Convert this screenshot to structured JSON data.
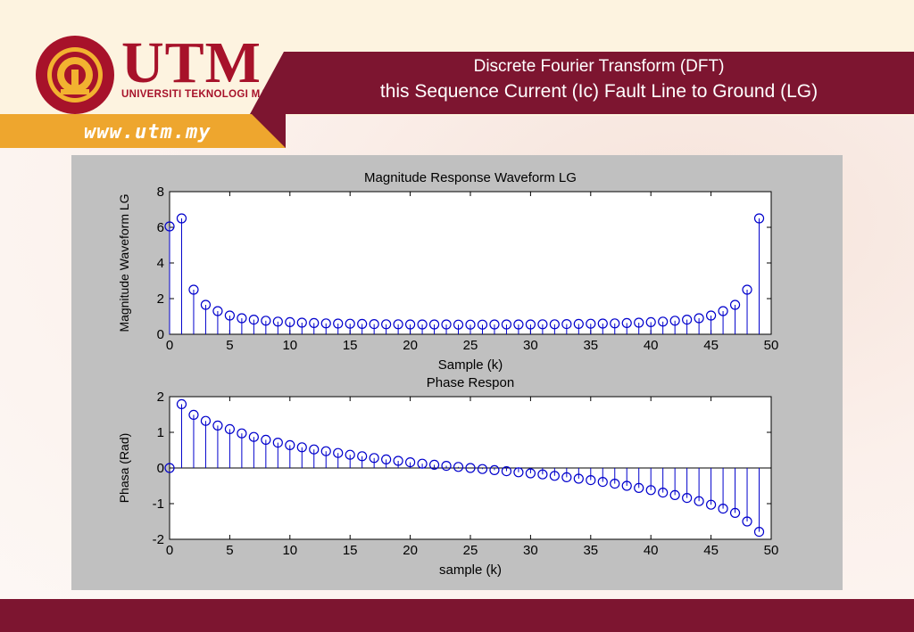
{
  "header": {
    "title_line1": "Discrete Fourier Transform (DFT)",
    "title_line2": "this Sequence Current  (Ic) Fault Line to Ground (LG)",
    "logo_main": "UTM",
    "logo_sub": "UNIVERSITI TEKNOLOGI MALAYSIA",
    "url": "www.utm.my"
  },
  "colors": {
    "maroon": "#7d1530",
    "gold": "#eea62e",
    "stem": "#0000cc"
  },
  "chart_data": [
    {
      "type": "stem",
      "title": "Magnitude Response Waveform LG",
      "xlabel": "Sample (k)",
      "ylabel": "Magnitude Waveform LG",
      "xlim": [
        0,
        50
      ],
      "ylim": [
        0,
        8
      ],
      "xticks": [
        0,
        5,
        10,
        15,
        20,
        25,
        30,
        35,
        40,
        45,
        50
      ],
      "yticks": [
        0,
        2,
        4,
        6,
        8
      ],
      "x": [
        0,
        1,
        2,
        3,
        4,
        5,
        6,
        7,
        8,
        9,
        10,
        11,
        12,
        13,
        14,
        15,
        16,
        17,
        18,
        19,
        20,
        21,
        22,
        23,
        24,
        25,
        26,
        27,
        28,
        29,
        30,
        31,
        32,
        33,
        34,
        35,
        36,
        37,
        38,
        39,
        40,
        41,
        42,
        43,
        44,
        45,
        46,
        47,
        48,
        49
      ],
      "values": [
        6.05,
        6.5,
        2.5,
        1.65,
        1.3,
        1.05,
        0.9,
        0.82,
        0.76,
        0.71,
        0.68,
        0.65,
        0.63,
        0.61,
        0.6,
        0.59,
        0.58,
        0.57,
        0.56,
        0.56,
        0.55,
        0.55,
        0.55,
        0.55,
        0.54,
        0.54,
        0.54,
        0.55,
        0.55,
        0.55,
        0.55,
        0.56,
        0.56,
        0.57,
        0.58,
        0.59,
        0.6,
        0.61,
        0.63,
        0.65,
        0.68,
        0.71,
        0.76,
        0.82,
        0.9,
        1.05,
        1.3,
        1.65,
        2.5,
        6.5
      ]
    },
    {
      "type": "stem",
      "title": "Phase Respon",
      "xlabel": "sample (k)",
      "ylabel": "Phasa (Rad)",
      "xlim": [
        0,
        50
      ],
      "ylim": [
        -2,
        2
      ],
      "xticks": [
        0,
        5,
        10,
        15,
        20,
        25,
        30,
        35,
        40,
        45,
        50
      ],
      "yticks": [
        -2,
        -1,
        0,
        1,
        2
      ],
      "x": [
        0,
        1,
        2,
        3,
        4,
        5,
        6,
        7,
        8,
        9,
        10,
        11,
        12,
        13,
        14,
        15,
        16,
        17,
        18,
        19,
        20,
        21,
        22,
        23,
        24,
        25,
        26,
        27,
        28,
        29,
        30,
        31,
        32,
        33,
        34,
        35,
        36,
        37,
        38,
        39,
        40,
        41,
        42,
        43,
        44,
        45,
        46,
        47,
        48,
        49
      ],
      "values": [
        0,
        1.79,
        1.49,
        1.32,
        1.19,
        1.09,
        0.97,
        0.87,
        0.79,
        0.71,
        0.64,
        0.58,
        0.52,
        0.47,
        0.42,
        0.37,
        0.33,
        0.28,
        0.24,
        0.2,
        0.16,
        0.12,
        0.09,
        0.06,
        0.03,
        0.0,
        -0.03,
        -0.06,
        -0.09,
        -0.12,
        -0.15,
        -0.18,
        -0.22,
        -0.26,
        -0.3,
        -0.34,
        -0.39,
        -0.44,
        -0.5,
        -0.56,
        -0.62,
        -0.69,
        -0.76,
        -0.84,
        -0.93,
        -1.03,
        -1.14,
        -1.26,
        -1.5,
        -1.79
      ]
    }
  ]
}
